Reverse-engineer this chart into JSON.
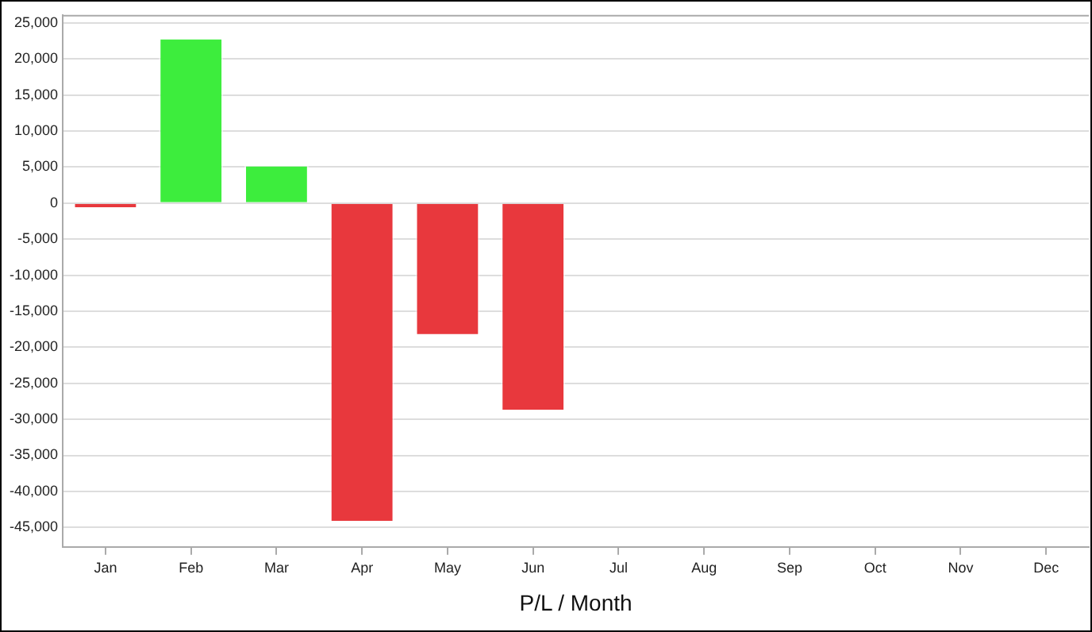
{
  "chart_data": {
    "type": "bar",
    "xlabel": "P/L / Month",
    "categories": [
      "Jan",
      "Feb",
      "Mar",
      "Apr",
      "May",
      "Jun",
      "Jul",
      "Aug",
      "Sep",
      "Oct",
      "Nov",
      "Dec"
    ],
    "values": [
      -800,
      22900,
      5300,
      -44300,
      -18400,
      -28900,
      null,
      null,
      null,
      null,
      null,
      null
    ],
    "colors": [
      "#e8383d",
      "#3ded3d",
      "#3ded3d",
      "#e8383d",
      "#e8383d",
      "#e8383d",
      "#e8383d",
      "#e8383d",
      "#e8383d",
      "#e8383d",
      "#e8383d",
      "#e8383d"
    ],
    "ylim": [
      -47700,
      26100
    ],
    "yticks": [
      {
        "value": 25000,
        "label": "25,000"
      },
      {
        "value": 20000,
        "label": "20,000"
      },
      {
        "value": 15000,
        "label": "15,000"
      },
      {
        "value": 10000,
        "label": "10,000"
      },
      {
        "value": 5000,
        "label": "5,000"
      },
      0,
      {
        "value": -5000,
        "label": "-5,000"
      },
      {
        "value": -10000,
        "label": "-10,000"
      },
      {
        "value": -15000,
        "label": "-15,000"
      },
      {
        "value": -20000,
        "label": "-20,000"
      },
      {
        "value": -25000,
        "label": "-25,000"
      },
      {
        "value": -30000,
        "label": "-30,000"
      },
      {
        "value": -35000,
        "label": "-35,000"
      },
      {
        "value": -40000,
        "label": "-40,000"
      },
      {
        "value": -45000,
        "label": "-45,000"
      }
    ],
    "grid": "y",
    "legend": false
  }
}
